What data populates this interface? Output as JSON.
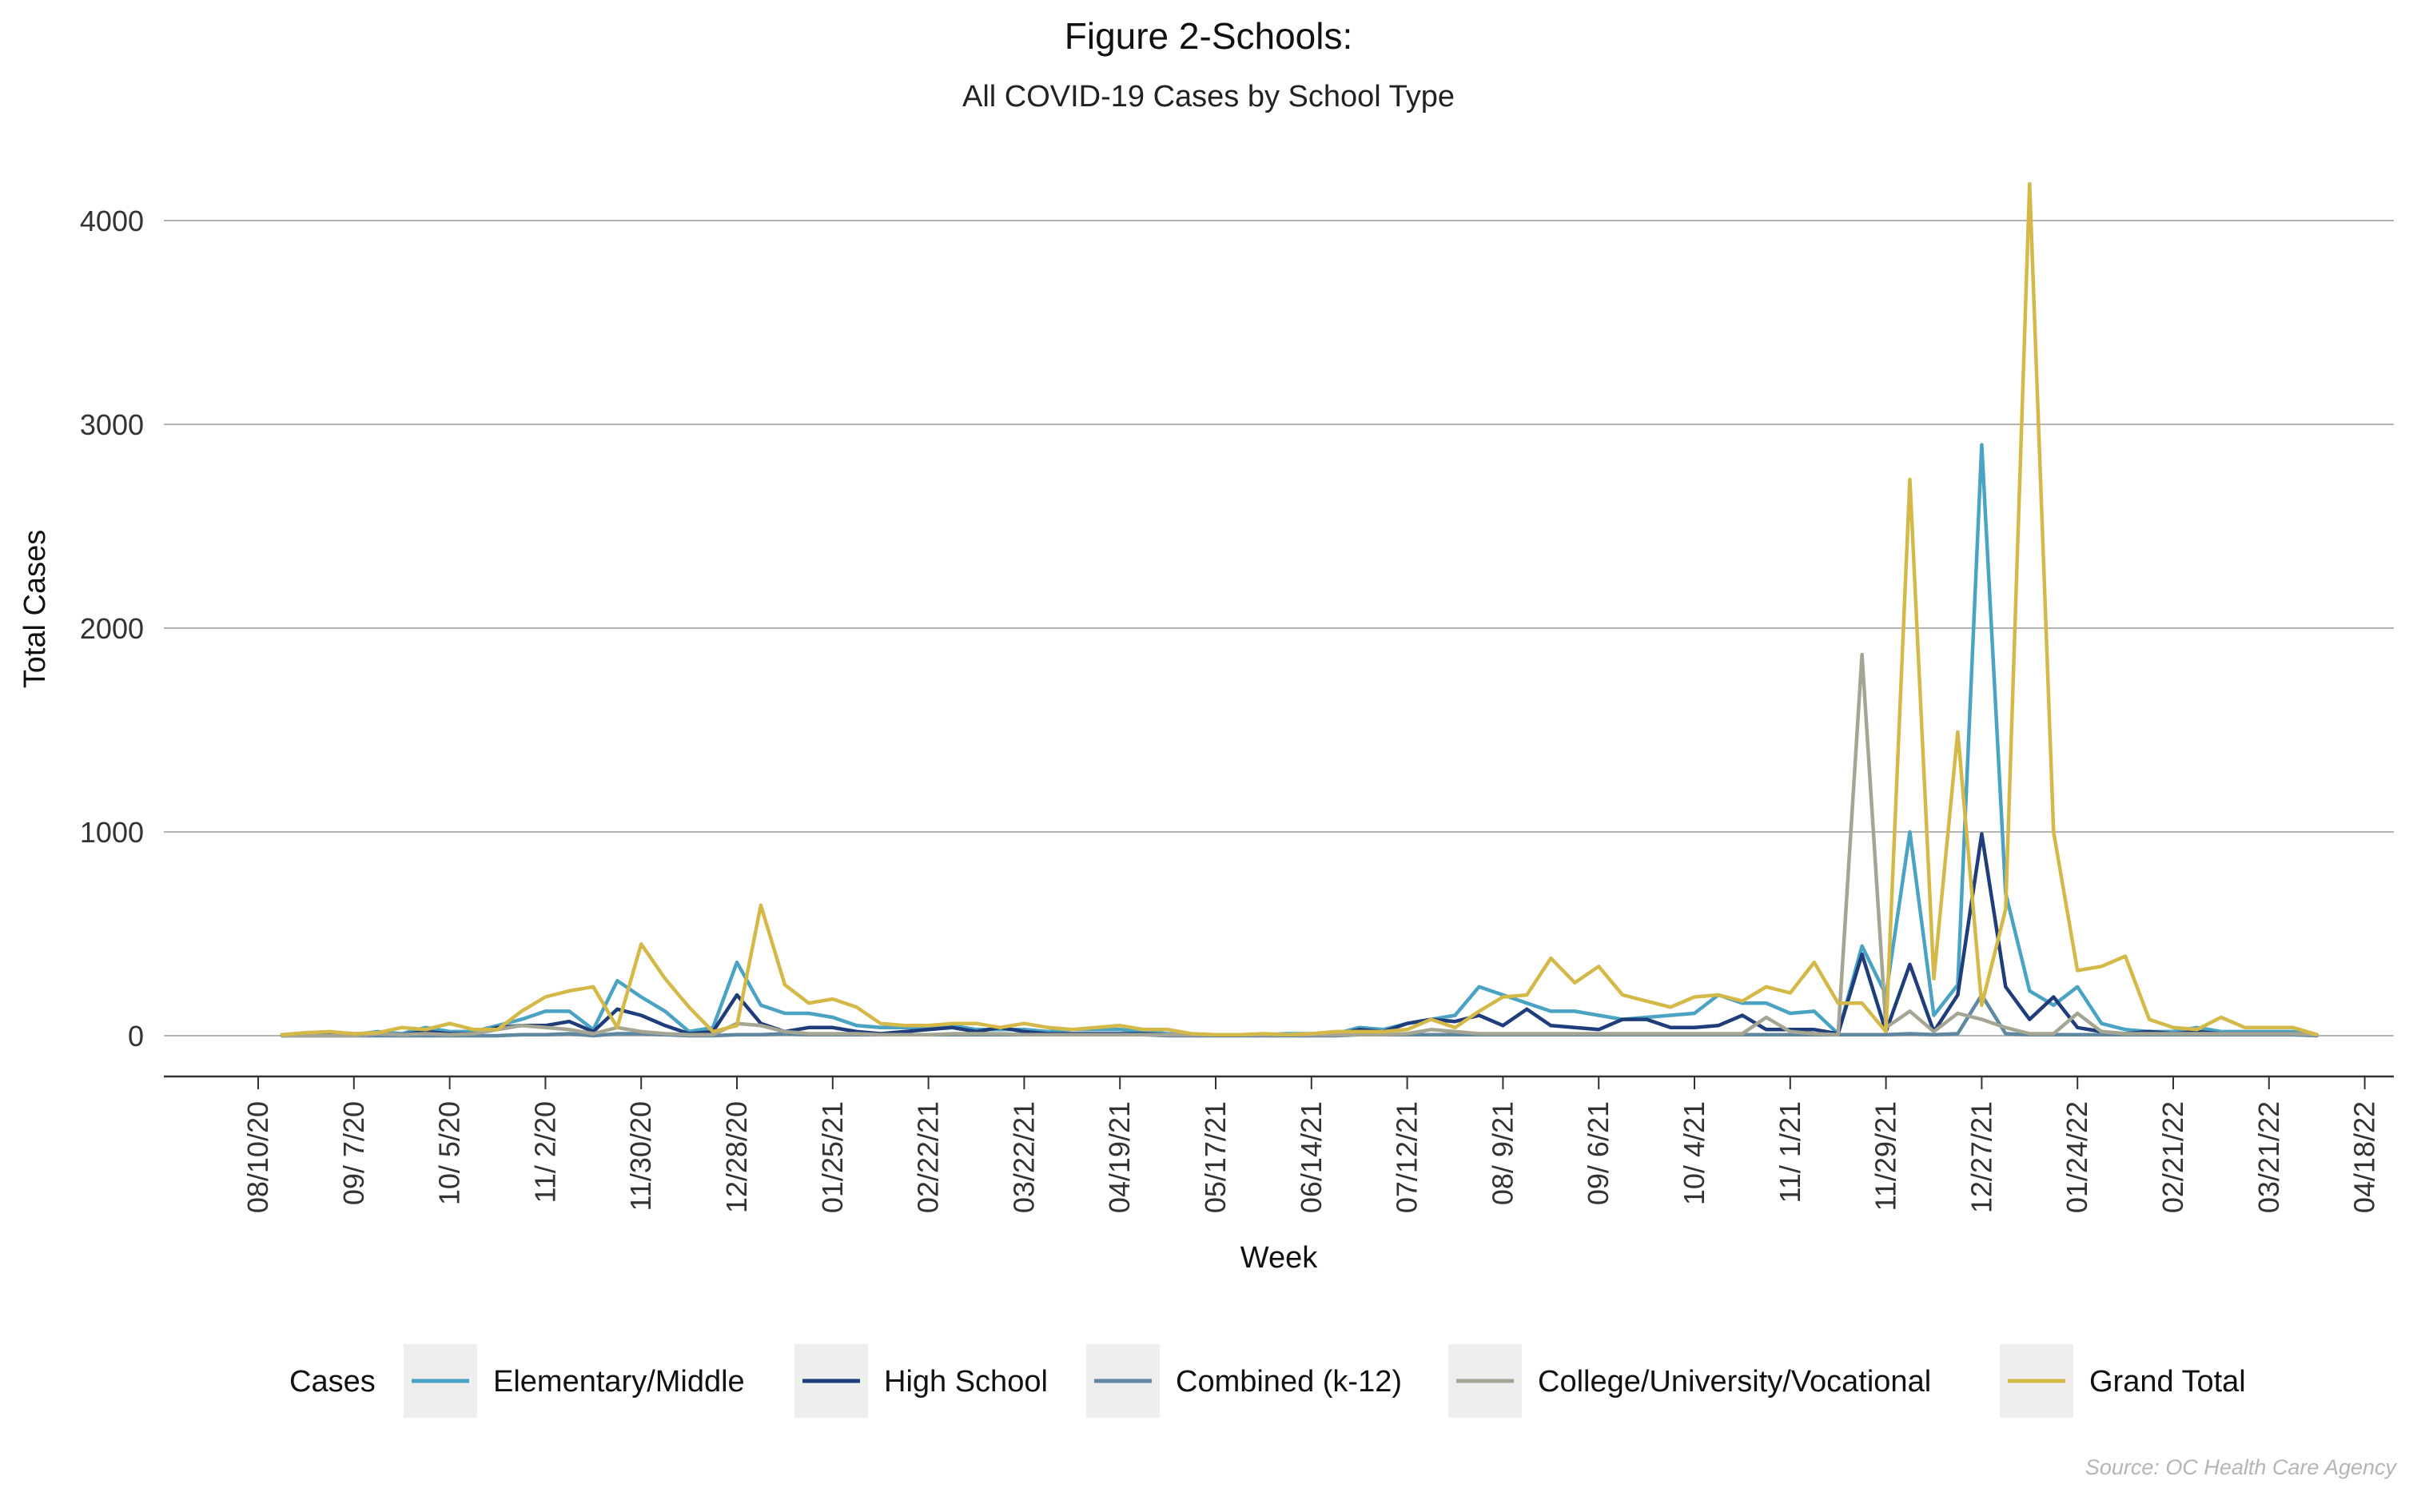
{
  "chart_data": {
    "type": "line",
    "title": "Figure 2-Schools:",
    "subtitle": "All COVID-19 Cases by School Type",
    "xlabel": "Week",
    "ylabel": "Total Cases",
    "ylim": [
      -200,
      4200
    ],
    "yticks": [
      0,
      1000,
      2000,
      3000,
      4000
    ],
    "grid": "horizontal",
    "legend_position": "bottom",
    "legend_title": "Cases",
    "source": "Source: OC Health Care Agency",
    "x_tick_labels": [
      "08/10/20",
      "09/ 7/20",
      "10/ 5/20",
      "11/ 2/20",
      "11/30/20",
      "12/28/20",
      "01/25/21",
      "02/22/21",
      "03/22/21",
      "04/19/21",
      "05/17/21",
      "06/14/21",
      "07/12/21",
      "08/ 9/21",
      "09/ 6/21",
      "10/ 4/21",
      "11/ 1/21",
      "11/29/21",
      "12/27/21",
      "01/24/22",
      "02/21/22",
      "03/21/22",
      "04/18/22"
    ],
    "x_weeks_start": "08/17/20",
    "x_weeks_count": 86,
    "series": [
      {
        "name": "Elementary/Middle",
        "color": "#4ba3c3",
        "values": [
          5,
          10,
          5,
          5,
          20,
          10,
          40,
          20,
          20,
          50,
          80,
          120,
          120,
          30,
          270,
          190,
          120,
          20,
          40,
          360,
          150,
          110,
          110,
          90,
          50,
          40,
          40,
          40,
          50,
          30,
          30,
          30,
          20,
          30,
          30,
          30,
          20,
          10,
          5,
          5,
          5,
          5,
          10,
          10,
          10,
          40,
          30,
          60,
          80,
          100,
          240,
          200,
          160,
          120,
          120,
          100,
          80,
          90,
          100,
          110,
          200,
          160,
          160,
          110,
          120,
          10,
          440,
          200,
          1000,
          100,
          250,
          2900,
          700,
          220,
          150,
          240,
          60,
          30,
          20,
          20,
          40,
          20,
          20,
          20,
          20,
          5
        ]
      },
      {
        "name": "High School",
        "color": "#1f3d7a",
        "values": [
          0,
          5,
          5,
          5,
          10,
          5,
          20,
          10,
          10,
          40,
          50,
          50,
          70,
          20,
          130,
          100,
          50,
          10,
          20,
          200,
          60,
          20,
          40,
          40,
          20,
          10,
          20,
          30,
          40,
          20,
          40,
          20,
          10,
          10,
          10,
          10,
          10,
          5,
          5,
          5,
          5,
          5,
          5,
          5,
          5,
          30,
          20,
          60,
          80,
          70,
          100,
          50,
          130,
          50,
          40,
          30,
          80,
          80,
          40,
          40,
          50,
          100,
          30,
          30,
          30,
          10,
          400,
          20,
          350,
          20,
          200,
          990,
          240,
          80,
          190,
          40,
          20,
          10,
          20,
          10,
          20,
          10,
          10,
          10,
          10,
          5
        ]
      },
      {
        "name": "Combined (k-12)",
        "color": "#5f87a2",
        "values": [
          0,
          0,
          0,
          0,
          0,
          0,
          0,
          0,
          0,
          0,
          5,
          5,
          10,
          0,
          10,
          10,
          5,
          0,
          0,
          5,
          5,
          10,
          5,
          5,
          5,
          5,
          5,
          5,
          5,
          5,
          5,
          5,
          5,
          5,
          5,
          5,
          5,
          0,
          0,
          0,
          0,
          0,
          0,
          0,
          0,
          5,
          5,
          5,
          5,
          5,
          5,
          5,
          5,
          5,
          5,
          5,
          5,
          5,
          5,
          5,
          5,
          5,
          5,
          5,
          5,
          5,
          5,
          5,
          10,
          5,
          10,
          200,
          10,
          5,
          5,
          5,
          5,
          5,
          5,
          5,
          5,
          5,
          5,
          5,
          5,
          0
        ]
      },
      {
        "name": "College/University/Vocational",
        "color": "#a5a593",
        "values": [
          0,
          0,
          0,
          0,
          10,
          5,
          10,
          5,
          10,
          30,
          50,
          40,
          30,
          10,
          40,
          20,
          10,
          5,
          5,
          60,
          50,
          20,
          10,
          10,
          10,
          5,
          5,
          5,
          10,
          10,
          10,
          5,
          5,
          5,
          5,
          5,
          5,
          5,
          5,
          5,
          5,
          5,
          5,
          5,
          5,
          5,
          5,
          10,
          30,
          20,
          10,
          10,
          10,
          10,
          10,
          10,
          10,
          10,
          10,
          10,
          10,
          10,
          90,
          20,
          10,
          5,
          1870,
          40,
          120,
          20,
          110,
          80,
          40,
          10,
          10,
          110,
          20,
          10,
          10,
          10,
          10,
          10,
          10,
          10,
          10,
          5
        ]
      },
      {
        "name": "Grand Total",
        "color": "#d4b948",
        "values": [
          5,
          15,
          20,
          10,
          15,
          40,
          30,
          60,
          30,
          30,
          120,
          190,
          220,
          240,
          40,
          450,
          280,
          140,
          20,
          50,
          640,
          250,
          160,
          180,
          140,
          60,
          50,
          50,
          60,
          60,
          40,
          60,
          40,
          30,
          40,
          50,
          30,
          30,
          10,
          5,
          5,
          10,
          5,
          10,
          20,
          20,
          20,
          30,
          80,
          40,
          120,
          190,
          200,
          380,
          260,
          340,
          200,
          170,
          140,
          190,
          200,
          170,
          240,
          210,
          360,
          160,
          160,
          20,
          2730,
          280,
          1490,
          150,
          620,
          4180,
          1000,
          320,
          340,
          390,
          80,
          40,
          30,
          90,
          40,
          40,
          40,
          5
        ]
      }
    ]
  }
}
